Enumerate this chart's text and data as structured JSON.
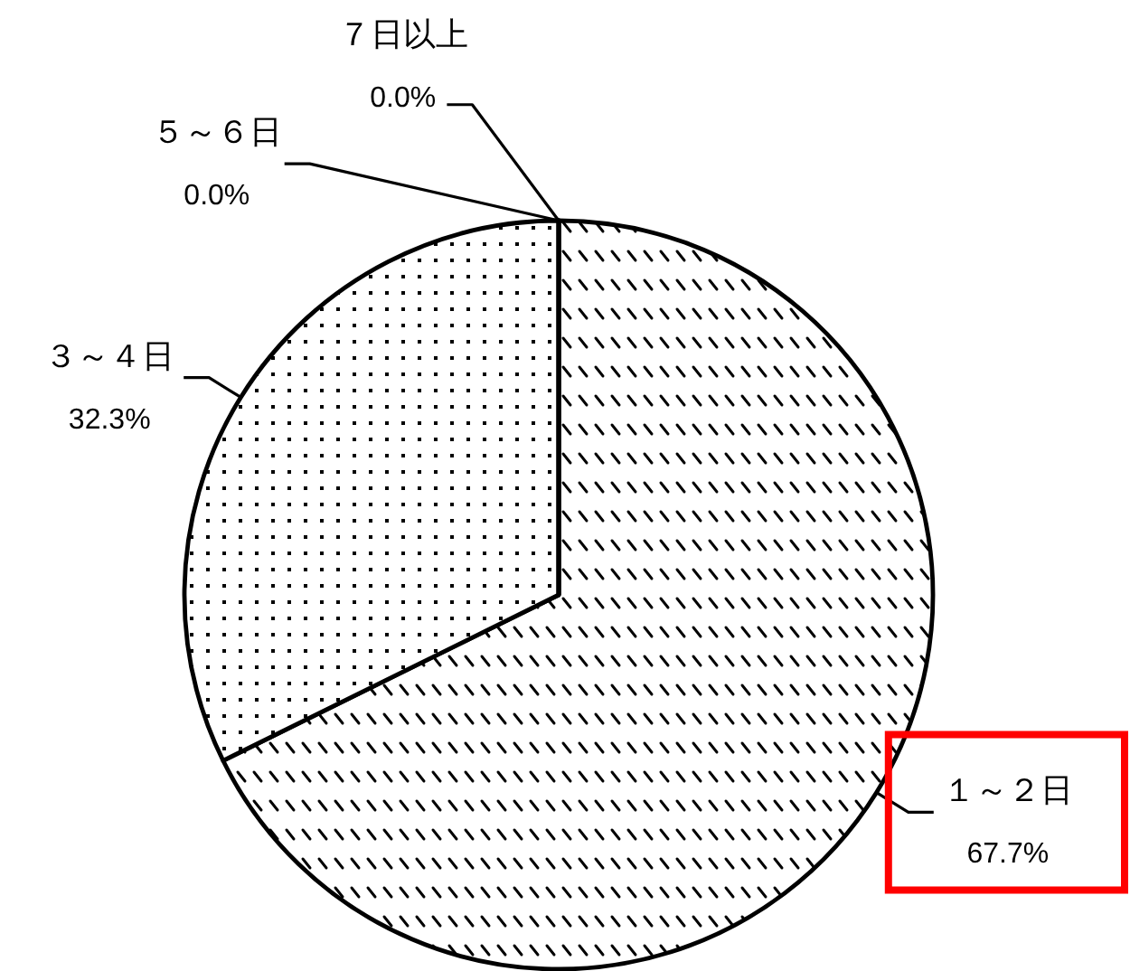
{
  "chart_data": {
    "type": "pie",
    "categories": [
      "１～２日",
      "３～４日",
      "５～６日",
      "７日以上"
    ],
    "values": [
      67.7,
      32.3,
      0.0,
      0.0
    ],
    "value_labels": [
      "67.7%",
      "32.3%",
      "0.0%",
      "0.0%"
    ],
    "colors": [
      "#ffffff",
      "#ffffff",
      "#ffffff",
      "#ffffff"
    ]
  }
}
